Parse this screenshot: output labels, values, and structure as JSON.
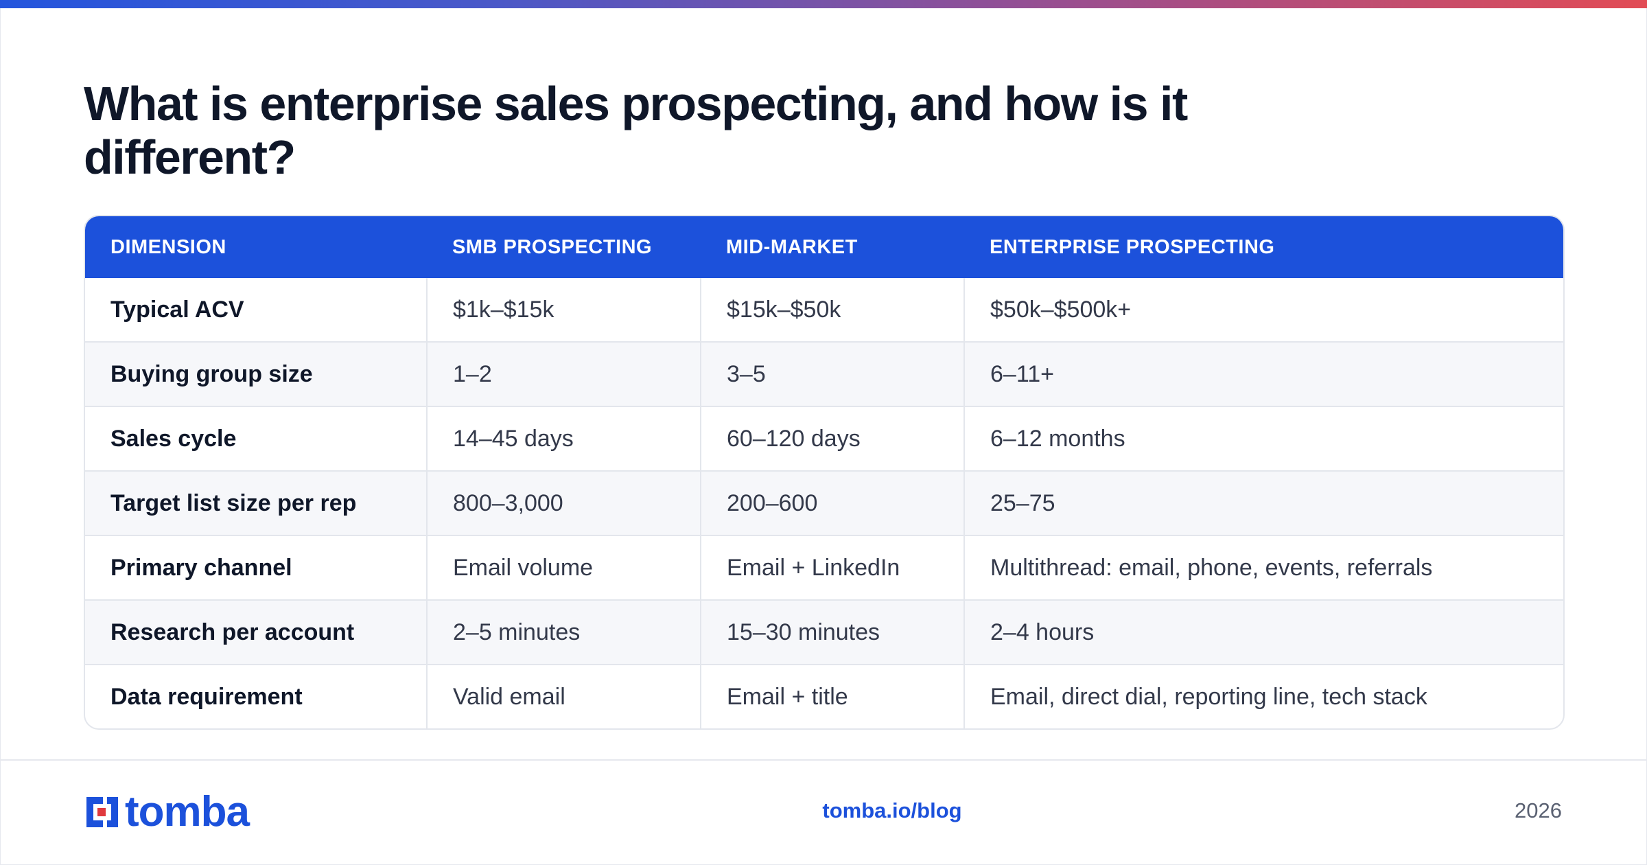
{
  "title": "What is enterprise sales prospecting, and how is it different?",
  "table": {
    "headers": [
      "DIMENSION",
      "SMB PROSPECTING",
      "MID-MARKET",
      "ENTERPRISE PROSPECTING"
    ],
    "rows": [
      [
        "Typical ACV",
        "$1k–$15k",
        "$15k–$50k",
        "$50k–$500k+"
      ],
      [
        "Buying group size",
        "1–2",
        "3–5",
        "6–11+"
      ],
      [
        "Sales cycle",
        "14–45 days",
        "60–120 days",
        "6–12 months"
      ],
      [
        "Target list size per rep",
        "800–3,000",
        "200–600",
        "25–75"
      ],
      [
        "Primary channel",
        "Email volume",
        "Email + LinkedIn",
        "Multithread: email, phone, events, referrals"
      ],
      [
        "Research per account",
        "2–5 minutes",
        "15–30 minutes",
        "2–4 hours"
      ],
      [
        "Data requirement",
        "Valid email",
        "Email + title",
        "Email, direct dial, reporting line, tech stack"
      ]
    ]
  },
  "footer": {
    "logo_text": "tomba",
    "link": "tomba.io/blog",
    "year": "2026"
  },
  "colors": {
    "accent": "#1c51db",
    "logo_red": "#e03a3e",
    "title": "#0f1729"
  }
}
